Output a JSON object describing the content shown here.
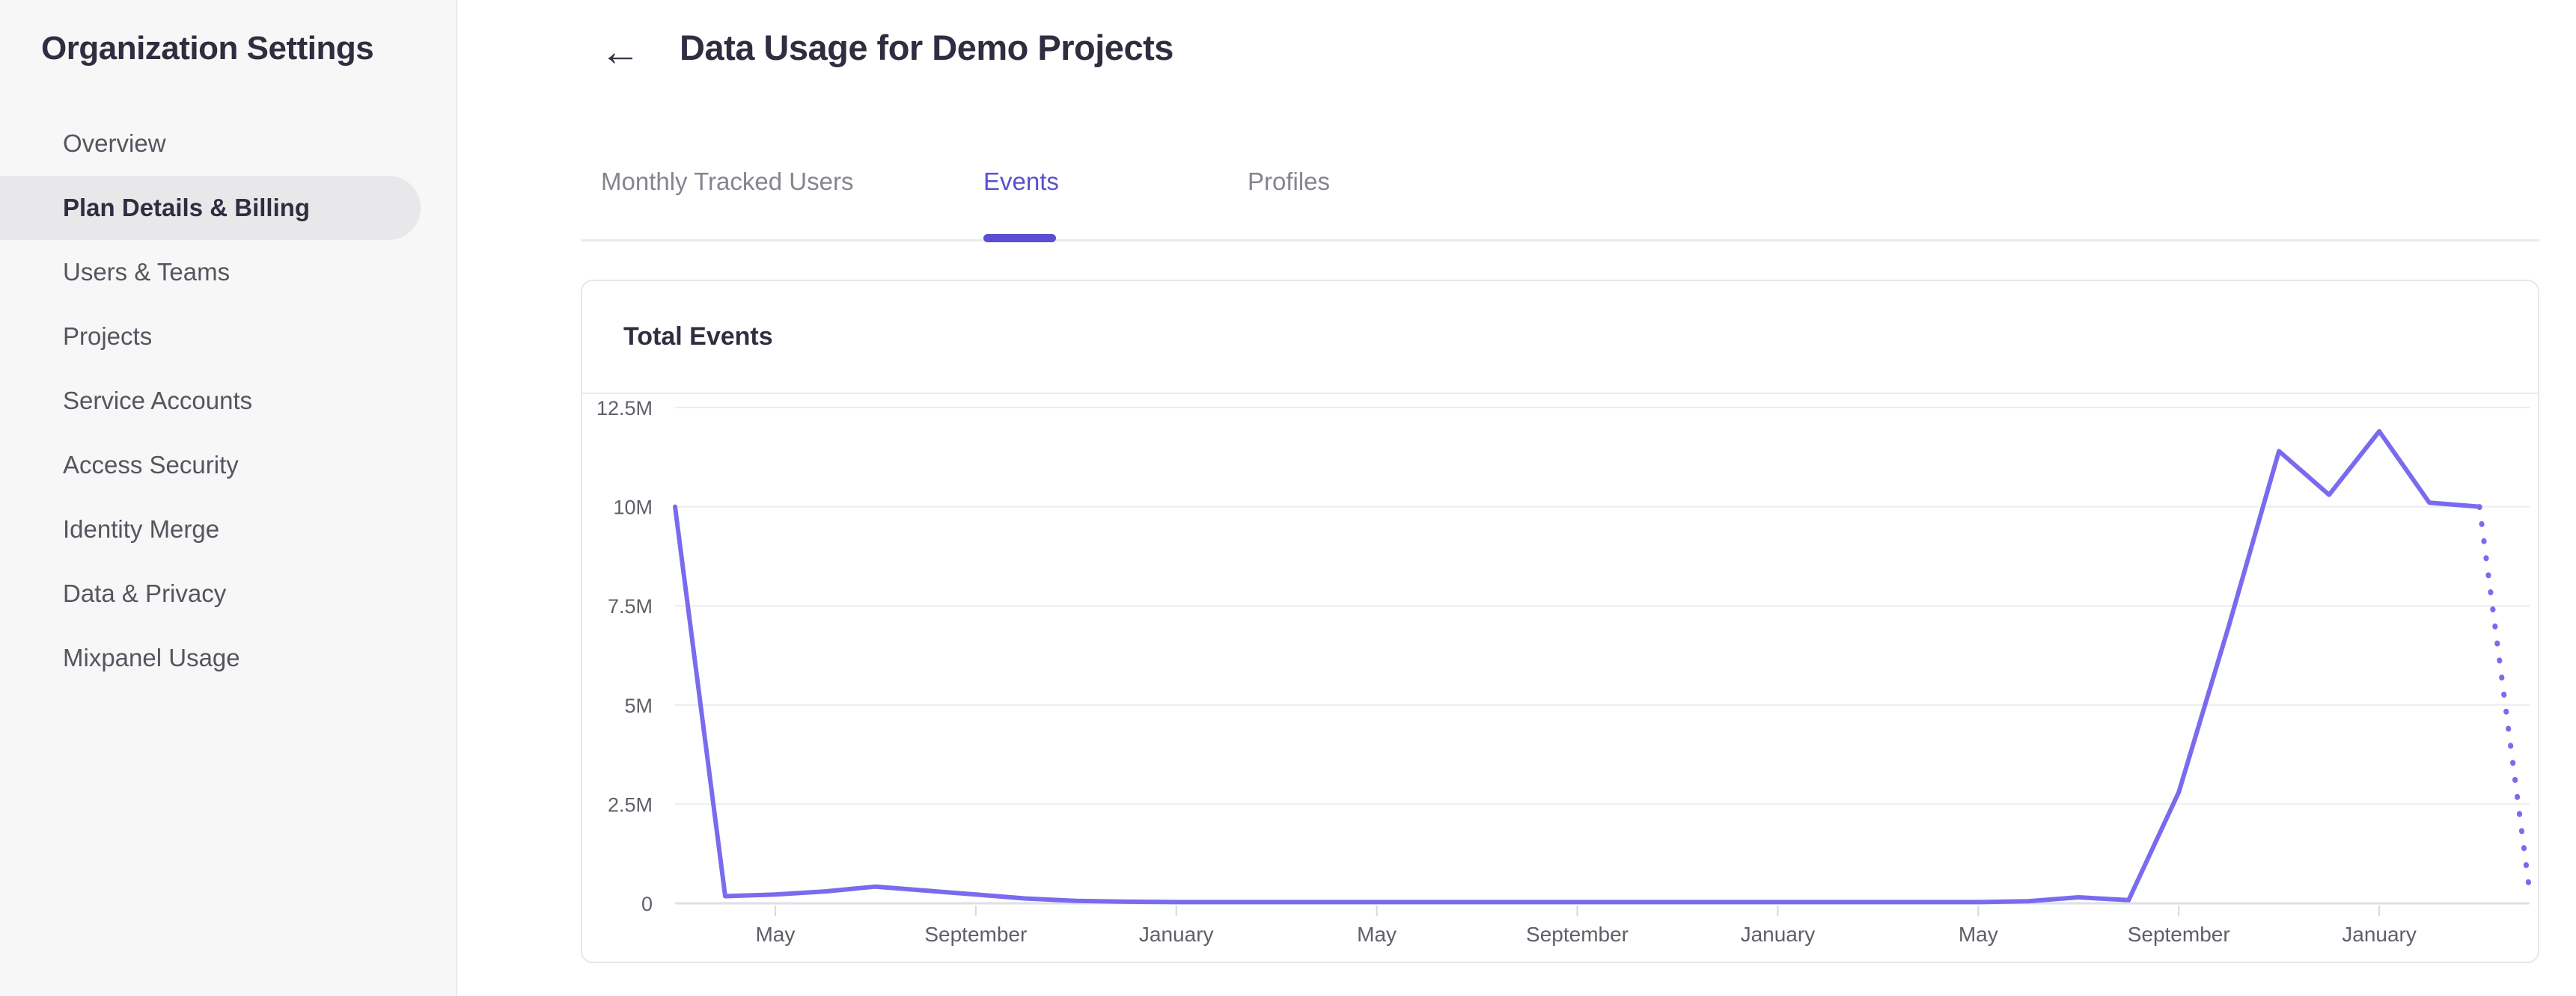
{
  "sidebar": {
    "title": "Organization Settings",
    "items": [
      {
        "label": "Overview",
        "selected": false
      },
      {
        "label": "Plan Details & Billing",
        "selected": true
      },
      {
        "label": "Users & Teams",
        "selected": false
      },
      {
        "label": "Projects",
        "selected": false
      },
      {
        "label": "Service Accounts",
        "selected": false
      },
      {
        "label": "Access Security",
        "selected": false
      },
      {
        "label": "Identity Merge",
        "selected": false
      },
      {
        "label": "Data & Privacy",
        "selected": false
      },
      {
        "label": "Mixpanel Usage",
        "selected": false
      }
    ]
  },
  "header": {
    "back_icon": "←",
    "title": "Data Usage for Demo Projects"
  },
  "tabs": [
    {
      "label": "Monthly Tracked Users",
      "active": false
    },
    {
      "label": "Events",
      "active": true
    },
    {
      "label": "Profiles",
      "active": false
    }
  ],
  "card": {
    "title": "Total Events"
  },
  "colors": {
    "accent_purple": "#5a4fd0",
    "line_purple": "#7a6bee",
    "sidebar_bg": "#f7f7f8",
    "selected_pill_bg": "#e8e8eb",
    "text_dark": "#2e2e40",
    "text_gray": "#55555f",
    "axis_label_gray": "#5f5f68",
    "gridline": "#ececf0",
    "axis_line": "#dfdfe4",
    "card_border": "#e7e7ea"
  },
  "chart_data": {
    "type": "line",
    "title": "Total Events",
    "unit": "events per month (millions)",
    "series": [
      {
        "name": "Total Events",
        "values_millions": [
          10.0,
          0.18,
          0.22,
          0.3,
          0.42,
          0.32,
          0.22,
          0.12,
          0.06,
          0.04,
          0.03,
          0.03,
          0.03,
          0.03,
          0.03,
          0.03,
          0.03,
          0.03,
          0.03,
          0.03,
          0.03,
          0.03,
          0.03,
          0.03,
          0.03,
          0.03,
          0.03,
          0.05,
          0.15,
          0.08,
          2.8,
          7.0,
          11.4,
          10.3,
          11.9,
          10.1,
          10.0,
          0.3
        ]
      }
    ],
    "last_segment_projected_dotted": true,
    "x_tick_labels": [
      "May",
      "September",
      "January",
      "May",
      "September",
      "January",
      "May",
      "September",
      "January"
    ],
    "x_tick_indices": [
      2,
      6,
      10,
      14,
      18,
      22,
      26,
      30,
      34
    ],
    "y_tick_labels": [
      "0",
      "2.5M",
      "5M",
      "7.5M",
      "10M",
      "12.5M"
    ],
    "y_tick_values_millions": [
      0,
      2.5,
      5,
      7.5,
      10,
      12.5
    ],
    "ylim_millions": [
      0,
      12.5
    ],
    "grid": "horizontal",
    "legend": "none"
  }
}
